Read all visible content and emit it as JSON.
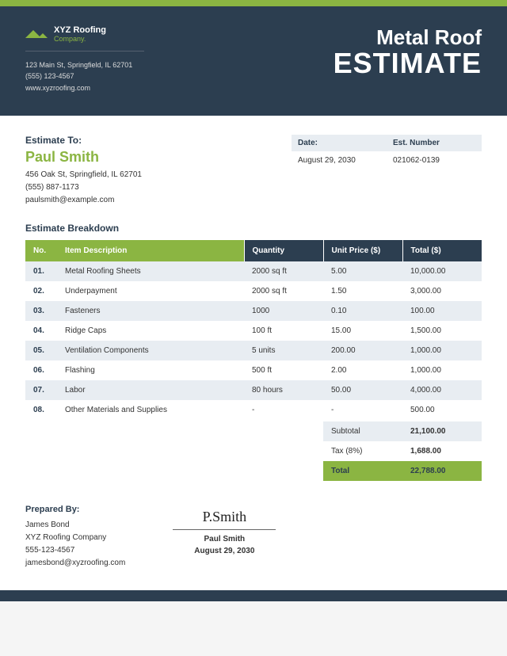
{
  "company": {
    "name": "XYZ Roofing",
    "tag": "Company.",
    "address": "123 Main St, Springfield, IL 62701",
    "phone": "(555) 123-4567",
    "website": "www.xyzroofing.com"
  },
  "title": {
    "line1": "Metal Roof",
    "line2": "ESTIMATE"
  },
  "customer": {
    "label": "Estimate To:",
    "name": "Paul Smith",
    "address": "456 Oak St, Springfield, IL 62701",
    "phone": "(555) 887-1173",
    "email": "paulsmith@example.com"
  },
  "meta": {
    "dateLabel": "Date:",
    "date": "August 29, 2030",
    "estLabel": "Est. Number",
    "estNumber": "021062-0139"
  },
  "breakdownTitle": "Estimate Breakdown",
  "columns": {
    "no": "No.",
    "desc": "Item Description",
    "qty": "Quantity",
    "price": "Unit Price ($)",
    "total": "Total ($)"
  },
  "items": [
    {
      "no": "01.",
      "desc": "Metal Roofing Sheets",
      "qty": "2000 sq ft",
      "price": "5.00",
      "total": "10,000.00"
    },
    {
      "no": "02.",
      "desc": "Underpayment",
      "qty": "2000 sq ft",
      "price": "1.50",
      "total": "3,000.00"
    },
    {
      "no": "03.",
      "desc": "Fasteners",
      "qty": "1000",
      "price": "0.10",
      "total": "100.00"
    },
    {
      "no": "04.",
      "desc": "Ridge Caps",
      "qty": "100 ft",
      "price": "15.00",
      "total": "1,500.00"
    },
    {
      "no": "05.",
      "desc": "Ventilation Components",
      "qty": "5 units",
      "price": "200.00",
      "total": "1,000.00"
    },
    {
      "no": "06.",
      "desc": "Flashing",
      "qty": "500 ft",
      "price": "2.00",
      "total": "1,000.00"
    },
    {
      "no": "07.",
      "desc": "Labor",
      "qty": "80 hours",
      "price": "50.00",
      "total": "4,000.00"
    },
    {
      "no": "08.",
      "desc": "Other Materials and Supplies",
      "qty": "-",
      "price": "-",
      "total": "500.00"
    }
  ],
  "totals": {
    "subLabel": "Subtotal",
    "sub": "21,100.00",
    "taxLabel": "Tax (8%)",
    "tax": "1,688.00",
    "grandLabel": "Total",
    "grand": "22,788.00"
  },
  "prepared": {
    "label": "Prepared By:",
    "name": "James Bond",
    "company": "XYZ Roofing Company",
    "phone": "555-123-4567",
    "email": "jamesbond@xyzroofing.com"
  },
  "signature": {
    "script": "P.Smith",
    "name": "Paul Smith",
    "date": "August 29, 2030"
  },
  "colors": {
    "green": "#8BB542",
    "navy": "#2C3E50",
    "lightBlue": "#E8EDF2"
  }
}
